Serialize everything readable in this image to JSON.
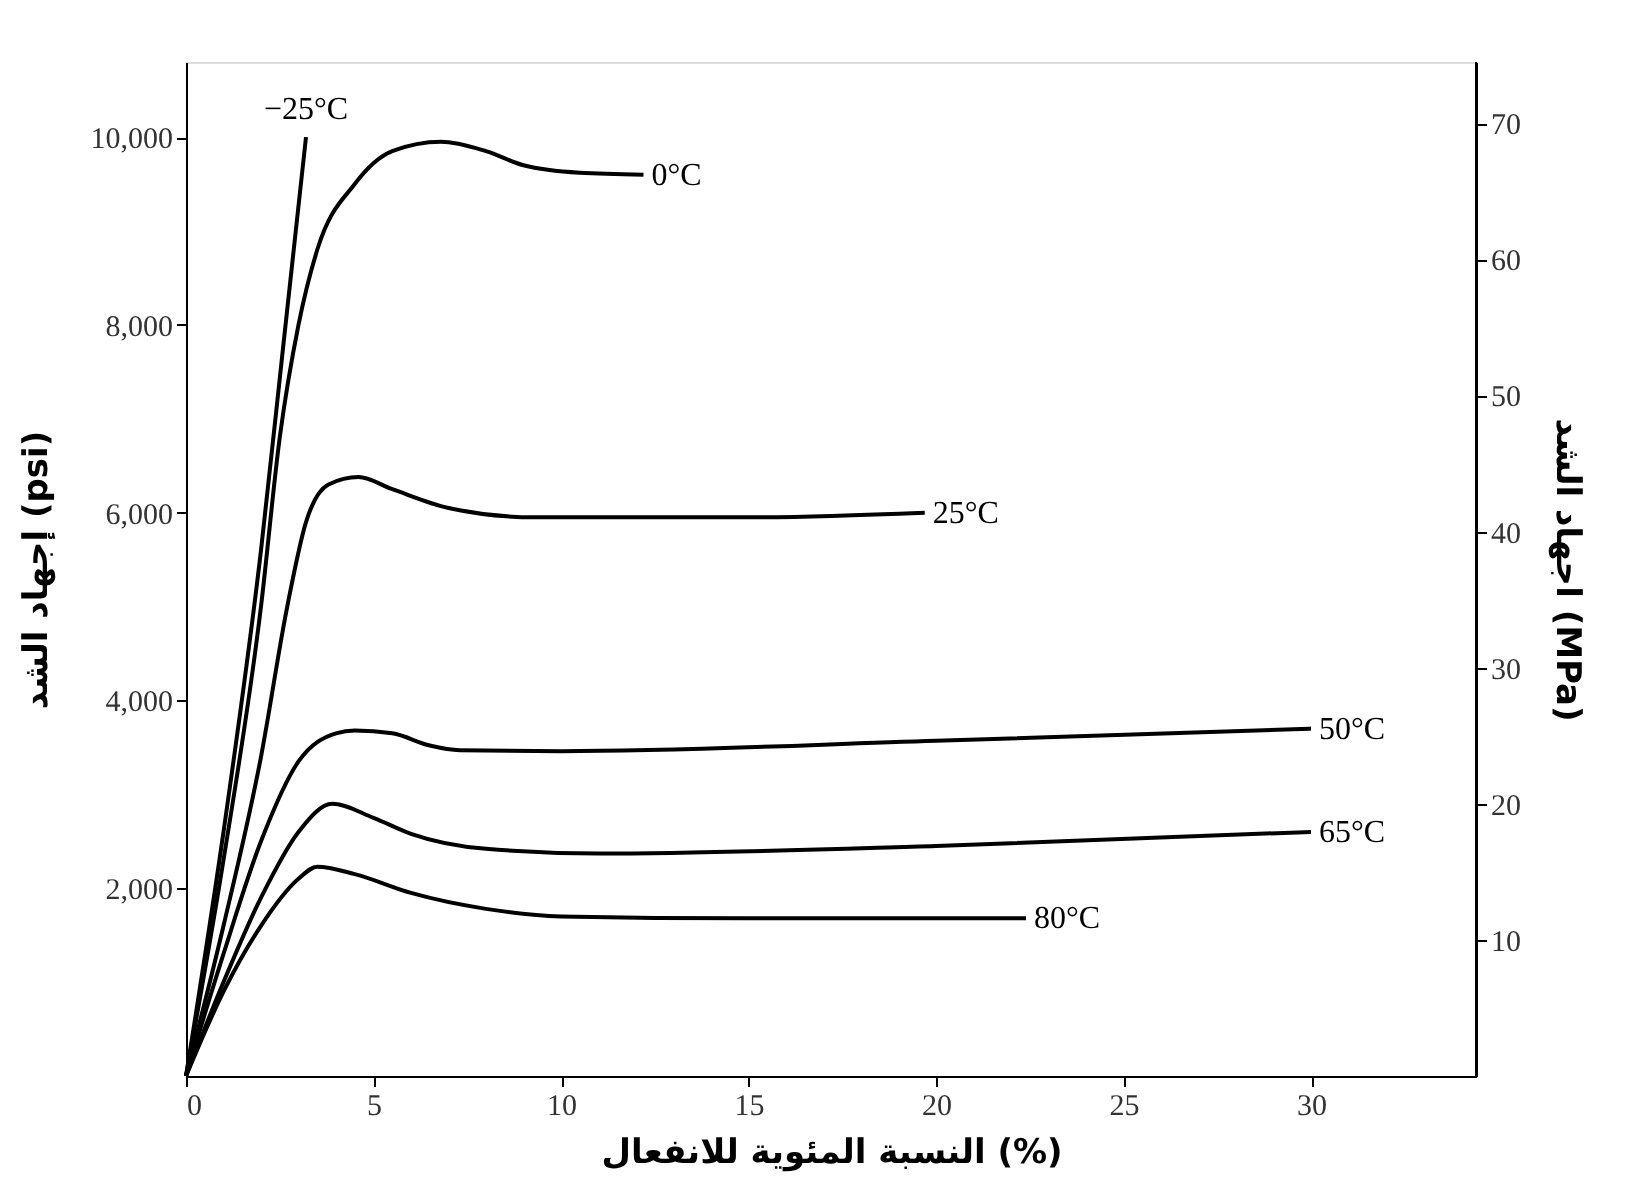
{
  "chart_data": {
    "type": "line",
    "xlabel": "النسبة المئوية للانفعال (%)",
    "ylabel": "إجهاد الشد (psi)",
    "y2label": "اجهاد الشد (MPa)",
    "xlim": [
      0,
      34.4
    ],
    "xticks": [
      0,
      5,
      10,
      15,
      20,
      25,
      30
    ],
    "ylim": [
      0,
      10800
    ],
    "yticks": [
      {
        "value": 2000,
        "label": "2,000"
      },
      {
        "value": 4000,
        "label": "4,000"
      },
      {
        "value": 6000,
        "label": "6,000"
      },
      {
        "value": 8000,
        "label": "8,000"
      },
      {
        "value": 10000,
        "label": "10,000"
      }
    ],
    "y2lim": [
      0,
      74.5
    ],
    "y2ticks": [
      10,
      20,
      30,
      40,
      50,
      60,
      70
    ],
    "grid": false,
    "legend": false,
    "marker": "none",
    "line_style": "solid",
    "series": [
      {
        "name": "−25°C",
        "color": "#000000",
        "x": [
          0,
          1,
          2,
          2.6,
          3.2
        ],
        "values": [
          0,
          2600,
          5600,
          7800,
          10000
        ]
      },
      {
        "name": "0°C",
        "color": "#000000",
        "x": [
          0,
          1,
          2,
          2.5,
          3,
          3.5,
          4.5,
          5.5,
          6.8,
          8,
          9,
          10.5,
          12.2
        ],
        "values": [
          0,
          2300,
          5000,
          6800,
          8000,
          8800,
          9500,
          9850,
          9950,
          9850,
          9700,
          9620,
          9600
        ]
      },
      {
        "name": "25°C",
        "color": "#000000",
        "x": [
          0,
          1,
          2,
          2.7,
          3.2,
          3.8,
          4.6,
          5.5,
          7,
          9.3,
          15,
          19.7
        ],
        "values": [
          0,
          1600,
          3400,
          5000,
          5900,
          6300,
          6380,
          6250,
          6050,
          5950,
          5950,
          6000
        ]
      },
      {
        "name": "50°C",
        "color": "#000000",
        "x": [
          0,
          1,
          2,
          3,
          4,
          4.5,
          5.5,
          6.5,
          7.3,
          10,
          20,
          30
        ],
        "values": [
          0,
          1300,
          2500,
          3350,
          3650,
          3680,
          3650,
          3520,
          3470,
          3460,
          3570,
          3700
        ]
      },
      {
        "name": "65°C",
        "color": "#000000",
        "x": [
          0,
          1,
          2,
          3,
          3.9,
          5,
          6,
          8,
          11,
          20,
          30
        ],
        "values": [
          0,
          1000,
          1900,
          2600,
          2900,
          2750,
          2580,
          2420,
          2370,
          2450,
          2600
        ]
      },
      {
        "name": "80°C",
        "color": "#000000",
        "x": [
          0,
          1,
          2,
          3,
          3.5,
          4.5,
          6,
          8,
          10,
          15,
          22.4
        ],
        "values": [
          0,
          900,
          1600,
          2100,
          2230,
          2150,
          1950,
          1780,
          1700,
          1680,
          1680
        ]
      }
    ]
  }
}
